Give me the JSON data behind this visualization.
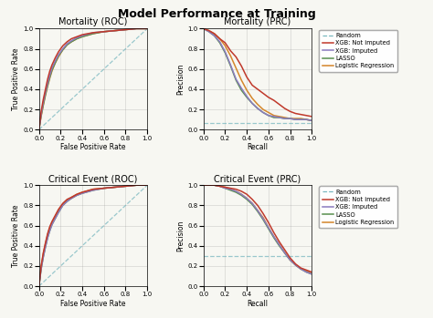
{
  "title": "Model Performance at Training",
  "subplots": [
    {
      "title": "Mortality (ROC)",
      "xlabel": "False Positive Rate",
      "ylabel": "True Positive Rate",
      "type": "ROC"
    },
    {
      "title": "Mortality (PRC)",
      "xlabel": "Recall",
      "ylabel": "Precision",
      "type": "PRC",
      "random_level": 0.07
    },
    {
      "title": "Critical Event (ROC)",
      "xlabel": "False Positive Rate",
      "ylabel": "True Positive Rate",
      "type": "ROC"
    },
    {
      "title": "Critical Event (PRC)",
      "xlabel": "Recall",
      "ylabel": "Precision",
      "type": "PRC",
      "random_level": 0.295
    }
  ],
  "legend_labels": [
    "Random",
    "XGB: Not imputed",
    "XGB: Imputed",
    "LASSO",
    "Logistic Regression"
  ],
  "colors": {
    "random": "#7ab8c0",
    "xgb_not_imputed": "#c0392b",
    "xgb_imputed": "#8b7bbf",
    "lasso": "#5a8f4f",
    "logistic": "#d4862b"
  },
  "background": "#f7f7f2",
  "figsize": [
    4.74,
    3.49
  ],
  "dpi": 100,
  "mort_roc": {
    "fpr": [
      0.0,
      0.02,
      0.04,
      0.06,
      0.08,
      0.1,
      0.12,
      0.15,
      0.18,
      0.22,
      0.26,
      0.3,
      0.35,
      0.4,
      0.5,
      0.6,
      0.7,
      0.8,
      0.9,
      1.0
    ],
    "tpr_ni": [
      0.0,
      0.18,
      0.3,
      0.4,
      0.5,
      0.58,
      0.64,
      0.71,
      0.77,
      0.83,
      0.87,
      0.9,
      0.92,
      0.94,
      0.96,
      0.97,
      0.98,
      0.99,
      1.0,
      1.0
    ],
    "tpr_i": [
      0.0,
      0.15,
      0.27,
      0.37,
      0.46,
      0.54,
      0.61,
      0.68,
      0.74,
      0.8,
      0.85,
      0.88,
      0.91,
      0.93,
      0.96,
      0.97,
      0.98,
      0.99,
      1.0,
      1.0
    ],
    "tpr_l": [
      0.0,
      0.14,
      0.25,
      0.35,
      0.44,
      0.52,
      0.59,
      0.66,
      0.73,
      0.79,
      0.84,
      0.87,
      0.9,
      0.92,
      0.95,
      0.97,
      0.98,
      0.99,
      1.0,
      1.0
    ],
    "tpr_lr": [
      0.0,
      0.13,
      0.24,
      0.34,
      0.43,
      0.51,
      0.58,
      0.66,
      0.72,
      0.79,
      0.84,
      0.87,
      0.9,
      0.92,
      0.95,
      0.97,
      0.98,
      0.99,
      1.0,
      1.0
    ]
  },
  "mort_prc": {
    "r_ni": [
      0.0,
      0.05,
      0.1,
      0.15,
      0.2,
      0.25,
      0.3,
      0.35,
      0.4,
      0.45,
      0.5,
      0.55,
      0.6,
      0.65,
      0.7,
      0.75,
      0.8,
      0.85,
      0.9,
      0.95,
      1.0
    ],
    "p_ni": [
      1.0,
      0.98,
      0.95,
      0.9,
      0.86,
      0.78,
      0.72,
      0.63,
      0.52,
      0.44,
      0.4,
      0.36,
      0.32,
      0.29,
      0.25,
      0.21,
      0.18,
      0.16,
      0.15,
      0.14,
      0.13
    ],
    "r_i": [
      0.0,
      0.05,
      0.1,
      0.15,
      0.2,
      0.25,
      0.3,
      0.35,
      0.4,
      0.45,
      0.5,
      0.55,
      0.6,
      0.65,
      0.7,
      0.75,
      0.8,
      0.85,
      0.9,
      0.95,
      1.0
    ],
    "p_i": [
      1.0,
      0.97,
      0.93,
      0.87,
      0.77,
      0.64,
      0.5,
      0.41,
      0.33,
      0.26,
      0.21,
      0.17,
      0.14,
      0.13,
      0.12,
      0.11,
      0.11,
      0.1,
      0.1,
      0.1,
      0.09
    ],
    "r_l": [
      0.0,
      0.05,
      0.1,
      0.15,
      0.2,
      0.25,
      0.3,
      0.35,
      0.4,
      0.45,
      0.5,
      0.55,
      0.6,
      0.65,
      0.7,
      0.75,
      0.8,
      0.85,
      0.9,
      0.95,
      1.0
    ],
    "p_l": [
      1.0,
      0.97,
      0.93,
      0.86,
      0.76,
      0.63,
      0.49,
      0.39,
      0.32,
      0.26,
      0.21,
      0.17,
      0.14,
      0.12,
      0.12,
      0.11,
      0.11,
      0.1,
      0.1,
      0.1,
      0.09
    ],
    "r_lr": [
      0.0,
      0.05,
      0.1,
      0.15,
      0.2,
      0.25,
      0.3,
      0.35,
      0.4,
      0.45,
      0.5,
      0.55,
      0.6,
      0.65,
      0.7,
      0.75,
      0.8,
      0.85,
      0.9,
      0.95,
      1.0
    ],
    "p_lr": [
      1.0,
      0.98,
      0.95,
      0.9,
      0.83,
      0.73,
      0.61,
      0.49,
      0.39,
      0.31,
      0.25,
      0.2,
      0.17,
      0.14,
      0.13,
      0.12,
      0.11,
      0.11,
      0.11,
      0.1,
      0.09
    ]
  },
  "crit_roc": {
    "fpr": [
      0.0,
      0.02,
      0.04,
      0.06,
      0.08,
      0.1,
      0.12,
      0.15,
      0.18,
      0.22,
      0.26,
      0.3,
      0.35,
      0.4,
      0.5,
      0.6,
      0.7,
      0.8,
      0.9,
      1.0
    ],
    "tpr_ni": [
      0.0,
      0.2,
      0.33,
      0.43,
      0.52,
      0.59,
      0.64,
      0.7,
      0.76,
      0.82,
      0.86,
      0.88,
      0.91,
      0.93,
      0.96,
      0.97,
      0.98,
      0.99,
      1.0,
      1.0
    ],
    "tpr_i": [
      0.0,
      0.17,
      0.29,
      0.39,
      0.48,
      0.55,
      0.61,
      0.67,
      0.73,
      0.8,
      0.84,
      0.87,
      0.9,
      0.92,
      0.95,
      0.97,
      0.98,
      0.99,
      1.0,
      1.0
    ],
    "tpr_l": [
      0.0,
      0.17,
      0.29,
      0.39,
      0.48,
      0.55,
      0.61,
      0.67,
      0.73,
      0.8,
      0.84,
      0.87,
      0.9,
      0.92,
      0.95,
      0.97,
      0.98,
      0.99,
      1.0,
      1.0
    ],
    "tpr_lr": [
      0.0,
      0.19,
      0.32,
      0.42,
      0.51,
      0.58,
      0.63,
      0.69,
      0.75,
      0.81,
      0.85,
      0.88,
      0.91,
      0.93,
      0.96,
      0.97,
      0.98,
      0.99,
      1.0,
      1.0
    ]
  },
  "crit_prc": {
    "r_ni": [
      0.0,
      0.05,
      0.1,
      0.15,
      0.2,
      0.25,
      0.3,
      0.35,
      0.4,
      0.45,
      0.5,
      0.55,
      0.6,
      0.65,
      0.7,
      0.75,
      0.8,
      0.85,
      0.9,
      0.95,
      1.0
    ],
    "p_ni": [
      1.0,
      1.0,
      1.0,
      0.99,
      0.98,
      0.97,
      0.96,
      0.94,
      0.91,
      0.86,
      0.8,
      0.72,
      0.63,
      0.53,
      0.44,
      0.36,
      0.28,
      0.22,
      0.18,
      0.16,
      0.14
    ],
    "r_i": [
      0.0,
      0.05,
      0.1,
      0.15,
      0.2,
      0.25,
      0.3,
      0.35,
      0.4,
      0.45,
      0.5,
      0.55,
      0.6,
      0.65,
      0.7,
      0.75,
      0.8,
      0.85,
      0.9,
      0.95,
      1.0
    ],
    "p_i": [
      1.0,
      1.0,
      1.0,
      0.99,
      0.97,
      0.96,
      0.94,
      0.91,
      0.87,
      0.82,
      0.75,
      0.67,
      0.58,
      0.49,
      0.41,
      0.33,
      0.26,
      0.21,
      0.17,
      0.14,
      0.12
    ],
    "r_l": [
      0.0,
      0.05,
      0.1,
      0.15,
      0.2,
      0.25,
      0.3,
      0.35,
      0.4,
      0.45,
      0.5,
      0.55,
      0.6,
      0.65,
      0.7,
      0.75,
      0.8,
      0.85,
      0.9,
      0.95,
      1.0
    ],
    "p_l": [
      1.0,
      1.0,
      1.0,
      0.99,
      0.97,
      0.95,
      0.93,
      0.9,
      0.86,
      0.81,
      0.74,
      0.66,
      0.57,
      0.48,
      0.4,
      0.33,
      0.26,
      0.21,
      0.17,
      0.14,
      0.12
    ],
    "r_lr": [
      0.0,
      0.05,
      0.1,
      0.15,
      0.2,
      0.25,
      0.3,
      0.35,
      0.4,
      0.45,
      0.5,
      0.55,
      0.6,
      0.65,
      0.7,
      0.75,
      0.8,
      0.85,
      0.9,
      0.95,
      1.0
    ],
    "p_lr": [
      1.0,
      1.0,
      1.0,
      0.99,
      0.98,
      0.96,
      0.94,
      0.91,
      0.87,
      0.82,
      0.75,
      0.68,
      0.58,
      0.49,
      0.41,
      0.33,
      0.26,
      0.21,
      0.17,
      0.15,
      0.13
    ]
  }
}
